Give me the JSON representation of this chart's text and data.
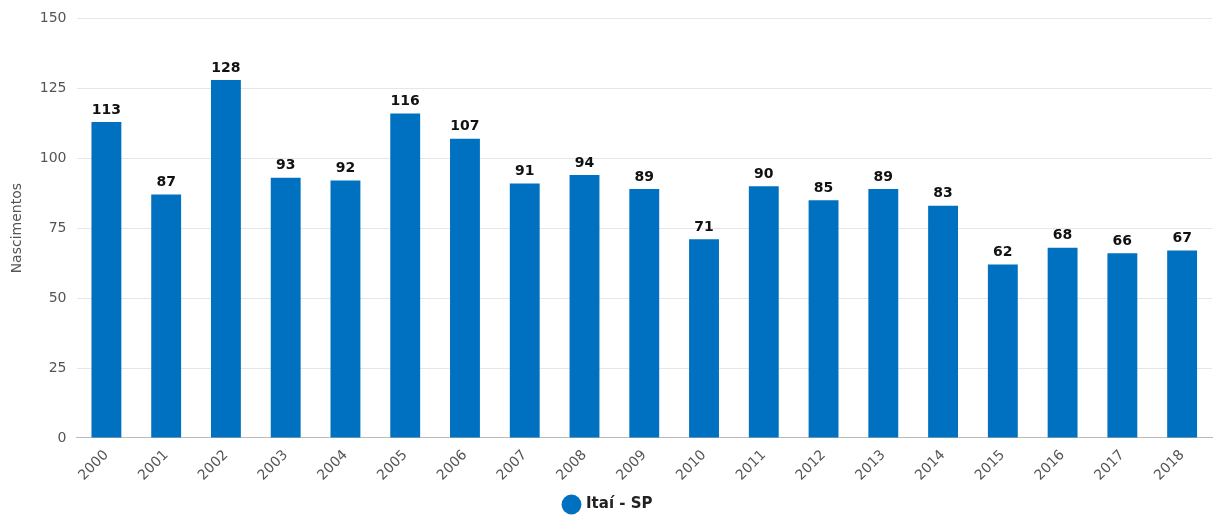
{
  "chart_data": {
    "type": "bar",
    "ylabel": "Nascimentos",
    "categories": [
      "2000",
      "2001",
      "2002",
      "2003",
      "2004",
      "2005",
      "2006",
      "2007",
      "2008",
      "2009",
      "2010",
      "2011",
      "2012",
      "2013",
      "2014",
      "2015",
      "2016",
      "2017",
      "2018"
    ],
    "series": [
      {
        "name": "Itaí - SP",
        "color": "#0070c0",
        "values": [
          113,
          87,
          128,
          93,
          92,
          116,
          107,
          91,
          94,
          89,
          71,
          90,
          85,
          89,
          83,
          62,
          68,
          66,
          67
        ]
      }
    ],
    "ylim": [
      0,
      150
    ],
    "yticks": [
      0,
      25,
      50,
      75,
      100,
      125,
      150
    ],
    "grid": "y",
    "legend": "bottom",
    "data_labels": true
  }
}
